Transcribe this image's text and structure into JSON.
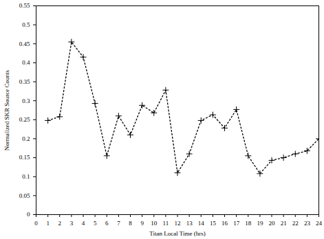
{
  "chart_data": {
    "type": "line",
    "x_label": "Titan Local Time (hrs)",
    "y_label": "Normalized SKR Source Counts",
    "x": [
      1,
      2,
      3,
      4,
      5,
      6,
      7,
      8,
      9,
      10,
      11,
      12,
      13,
      14,
      15,
      16,
      17,
      18,
      19,
      20,
      21,
      22,
      23,
      24
    ],
    "values": [
      0.248,
      0.258,
      0.455,
      0.415,
      0.293,
      0.155,
      0.26,
      0.21,
      0.288,
      0.268,
      0.328,
      0.11,
      0.16,
      0.248,
      0.263,
      0.228,
      0.277,
      0.155,
      0.108,
      0.143,
      0.15,
      0.16,
      0.168,
      0.2
    ],
    "color": "#000000",
    "marker": "plus",
    "line_style": "dotted",
    "xlim": [
      0,
      24
    ],
    "xticks": [
      0,
      1,
      2,
      3,
      4,
      5,
      6,
      7,
      8,
      9,
      10,
      11,
      12,
      13,
      14,
      15,
      16,
      17,
      18,
      19,
      20,
      21,
      22,
      23,
      24
    ],
    "ylim": [
      0,
      0.55
    ],
    "yticks": [
      0,
      0.05,
      0.1,
      0.15,
      0.2,
      0.25,
      0.3,
      0.35,
      0.4,
      0.45,
      0.5,
      0.55
    ],
    "grid": false
  }
}
